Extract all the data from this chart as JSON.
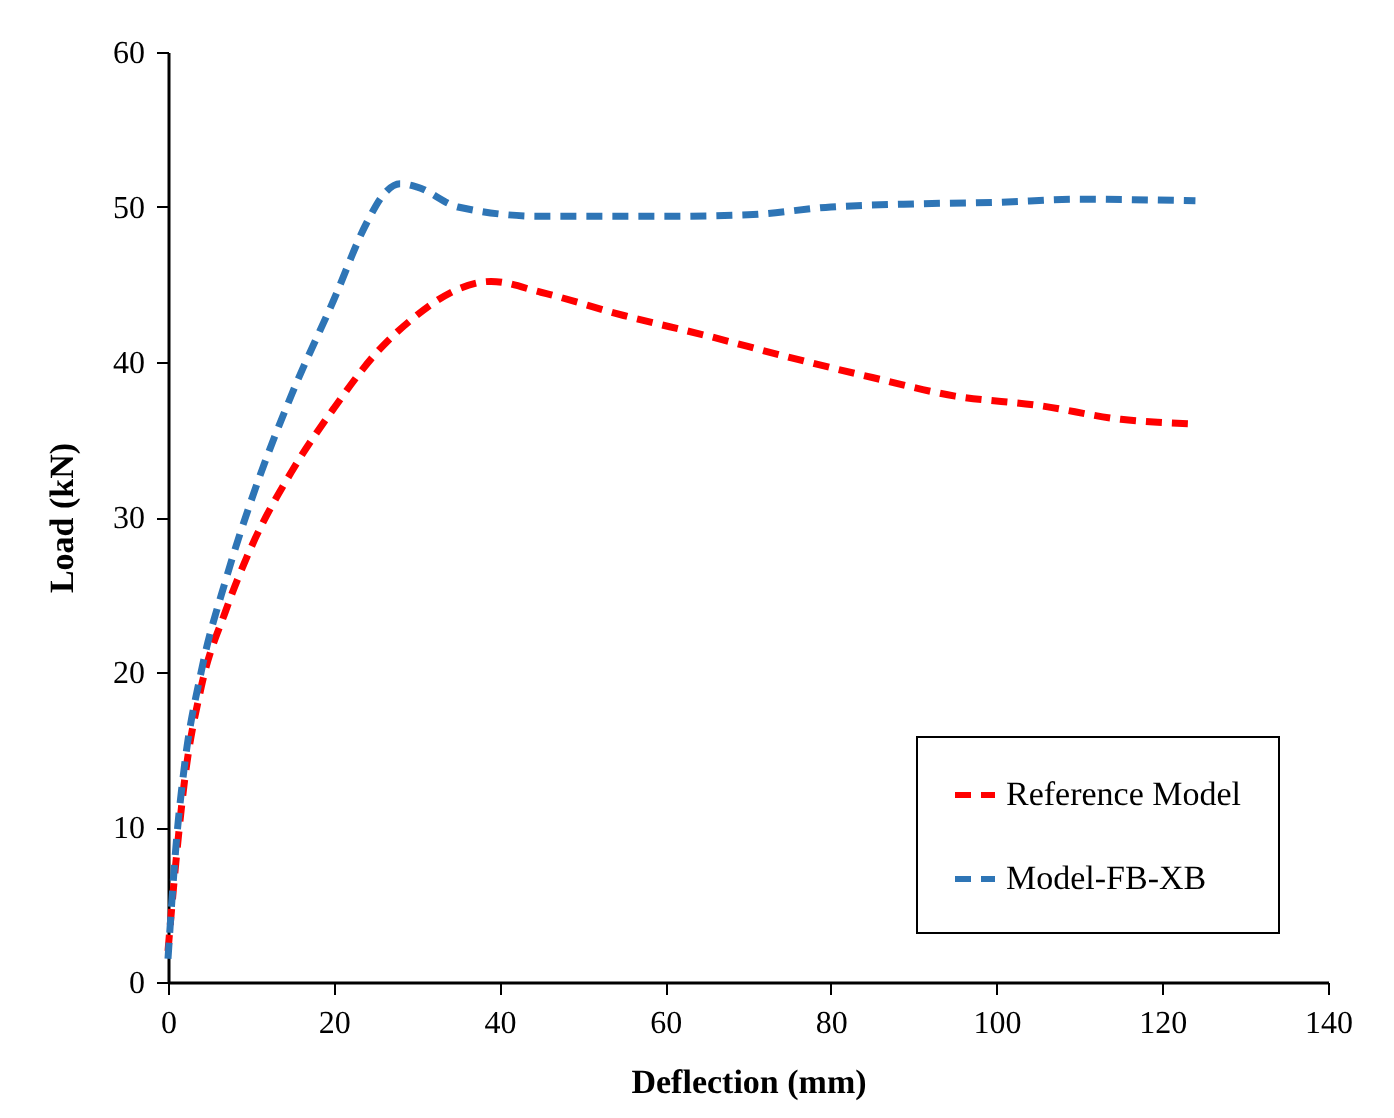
{
  "chart_data": {
    "type": "line",
    "xlabel": "Deflection (mm)",
    "ylabel": "Load (kN)",
    "xlim": [
      0,
      140
    ],
    "xticks": [
      0,
      20,
      40,
      60,
      80,
      100,
      120,
      140
    ],
    "ylim": [
      0,
      60
    ],
    "yticks": [
      0,
      10,
      20,
      30,
      40,
      50,
      60
    ],
    "grid": false,
    "legend": "bottom right",
    "line_style": "dashed",
    "marker": "none",
    "series": [
      {
        "name": "Reference Model",
        "color": "#ff0000",
        "x": [
          0,
          1,
          2,
          4,
          7,
          10,
          15,
          20,
          25,
          30,
          35,
          39,
          45,
          55,
          65,
          75,
          85,
          95,
          105,
          115,
          124
        ],
        "values": [
          2,
          8,
          13,
          19,
          24,
          28,
          33,
          37,
          40.5,
          43,
          44.7,
          45.2,
          44.5,
          43,
          41.7,
          40.3,
          39,
          37.8,
          37.2,
          36.3,
          36
        ]
      },
      {
        "name": "Model-FB-XB",
        "color": "#2e75b6",
        "x": [
          0,
          1,
          2,
          4,
          7,
          10,
          15,
          20,
          24,
          26,
          28,
          30,
          35,
          45,
          60,
          70,
          80,
          90,
          100,
          110,
          124
        ],
        "values": [
          1.5,
          9,
          14,
          20,
          26,
          31,
          38,
          44,
          49,
          50.8,
          51.5,
          51.3,
          50,
          49.4,
          49.4,
          49.5,
          50,
          50.2,
          50.3,
          50.5,
          50.4
        ]
      }
    ]
  }
}
